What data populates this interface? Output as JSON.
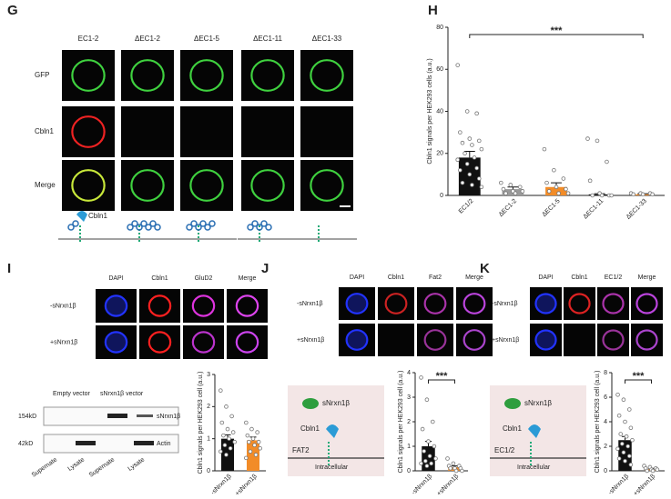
{
  "panels": {
    "G": {
      "label": "G",
      "columns": [
        "EC1-2",
        "ΔEC1-2",
        "ΔEC1-5",
        "ΔEC1-11",
        "ΔEC1-33"
      ],
      "rows": [
        "GFP",
        "Cbln1",
        "Merge"
      ],
      "schematic_label": "Cbln1"
    },
    "H": {
      "label": "H"
    },
    "I": {
      "label": "I",
      "columns": [
        "DAPI",
        "Cbln1",
        "GluD2",
        "Merge"
      ],
      "rows": [
        "-sNrxn1β",
        "+sNrxn1β"
      ],
      "blot": {
        "groups": [
          "Empty vector",
          "sNrxn1β vector"
        ],
        "sizes": [
          "154kD",
          "42kD"
        ],
        "bands": [
          "sNrxn1β",
          "Actin"
        ],
        "lanes": [
          "Supernate",
          "Lysate",
          "Supernate",
          "Lysate"
        ]
      }
    },
    "J": {
      "label": "J",
      "columns": [
        "DAPI",
        "Cbln1",
        "Fat2",
        "Merge"
      ],
      "rows": [
        "-sNrxn1β",
        "+sNrxn1β"
      ],
      "diagram": {
        "ligand": "sNrxn1β",
        "protein": "Cbln1",
        "receptor": "FAT2",
        "side": "Intracellular"
      }
    },
    "K": {
      "label": "K",
      "columns": [
        "DAPI",
        "Cbln1",
        "EC1/2",
        "Merge"
      ],
      "rows": [
        "-sNrxn1β",
        "+sNrxn1β"
      ],
      "diagram": {
        "ligand": "sNrxn1β",
        "protein": "Cbln1",
        "receptor": "EC1/2",
        "side": "Intracellular"
      }
    }
  },
  "chart_data": [
    {
      "type": "bar",
      "y_label": "Cbln1 signals per HEK293 cells (a.u.)",
      "categories": [
        "EC1/2",
        "ΔEC1-2",
        "ΔEC1-5",
        "ΔEC1-11",
        "ΔEC1-33"
      ],
      "values": [
        18,
        3,
        4,
        0.5,
        0.5
      ],
      "errors": [
        3,
        1,
        2,
        0.3,
        0.3
      ],
      "colors": [
        "#111111",
        "#9a9a9a",
        "#f28c28",
        "#111111",
        "#f28c28"
      ],
      "points": [
        [
          62,
          40,
          39,
          30,
          27,
          26,
          25,
          24,
          22,
          20,
          18,
          17,
          15,
          13,
          12,
          10,
          8,
          6,
          5,
          4
        ],
        [
          6,
          5,
          4,
          3,
          2,
          2,
          1,
          1
        ],
        [
          22,
          12,
          8,
          6,
          4,
          3,
          2,
          1,
          1
        ],
        [
          27,
          26,
          16,
          7,
          1,
          0,
          0,
          0,
          0
        ],
        [
          1,
          1,
          1,
          0.5,
          0.5,
          0.5
        ]
      ],
      "ylim": [
        0,
        80
      ],
      "yticks": [
        0,
        20,
        40,
        60,
        80
      ],
      "annotation": "***"
    },
    {
      "type": "bar",
      "y_label": "Cbln1 signals per HEK293 cell (a.u.)",
      "categories": [
        "-sNrxn1β",
        "+sNrxn1β"
      ],
      "values": [
        1.0,
        0.95
      ],
      "errors": [
        0.12,
        0.1
      ],
      "colors": [
        "#111111",
        "#f28c28"
      ],
      "points": [
        [
          2.5,
          2.0,
          1.7,
          1.5,
          1.3,
          1.2,
          1.1,
          1.0,
          0.9,
          0.8,
          0.7,
          0.6,
          0.5
        ],
        [
          1.5,
          1.3,
          1.2,
          1.1,
          1.0,
          0.9,
          0.9,
          0.8,
          0.7,
          0.6,
          0.5,
          0.4
        ]
      ],
      "ylim": [
        0,
        3
      ],
      "yticks": [
        0,
        1,
        2,
        3
      ]
    },
    {
      "type": "bar",
      "y_label": "Cbln1 signals per HEK293 cell (a.u.)",
      "categories": [
        "-sNrxn1β",
        "+sNrxn1β"
      ],
      "values": [
        1.0,
        0.15
      ],
      "errors": [
        0.2,
        0.05
      ],
      "colors": [
        "#111111",
        "#f28c28"
      ],
      "points": [
        [
          3.8,
          2.9,
          2.0,
          1.7,
          1.2,
          1.0,
          0.8,
          0.6,
          0.5,
          0.4,
          0.3,
          0.3,
          0.2
        ],
        [
          0.5,
          0.3,
          0.2,
          0.2,
          0.1,
          0.1,
          0.1,
          0,
          0
        ]
      ],
      "ylim": [
        0,
        4
      ],
      "yticks": [
        0,
        1,
        2,
        3,
        4
      ],
      "annotation": "***"
    },
    {
      "type": "bar",
      "y_label": "Cbln1 signals per HEK293 cell (a.u.)",
      "categories": [
        "-sNrxn1β",
        "+sNrxn1β"
      ],
      "values": [
        2.5,
        0.15
      ],
      "errors": [
        0.3,
        0.05
      ],
      "colors": [
        "#111111",
        "#f28c28"
      ],
      "points": [
        [
          6.2,
          5.8,
          5,
          4.5,
          4,
          3.5,
          3,
          2.8,
          2.5,
          2.2,
          2,
          1.8,
          1.5,
          1.2,
          1,
          0.8,
          0.5
        ],
        [
          0.4,
          0.3,
          0.2,
          0.2,
          0.1,
          0.1,
          0,
          0
        ]
      ],
      "ylim": [
        0,
        8
      ],
      "yticks": [
        0,
        2,
        4,
        6,
        8
      ],
      "annotation": "***"
    }
  ]
}
